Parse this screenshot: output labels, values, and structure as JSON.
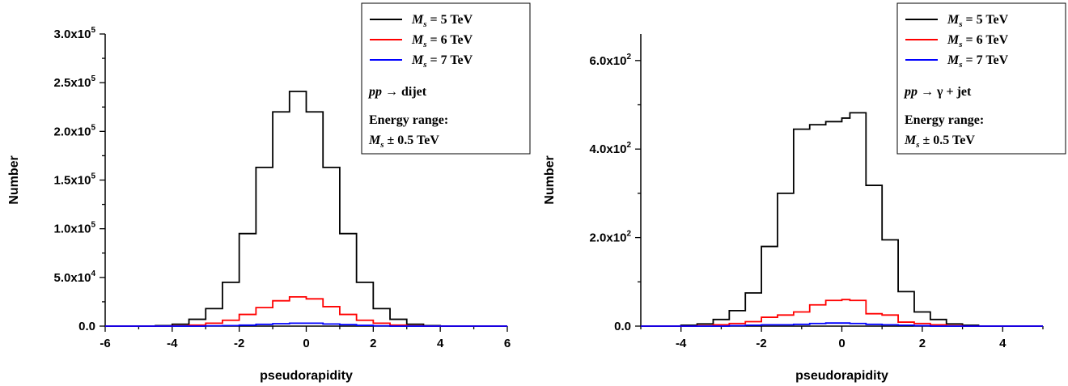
{
  "chart_data": [
    {
      "type": "line",
      "subtype": "step-histogram",
      "xlabel": "pseudorapidity",
      "ylabel": "Number",
      "xlim": [
        -6,
        6
      ],
      "ylim": [
        0,
        300000
      ],
      "xticks": [
        -6,
        -4,
        -2,
        0,
        2,
        4,
        6
      ],
      "xtick_labels": [
        "-6",
        "-4",
        "-2",
        "0",
        "2",
        "4",
        "6"
      ],
      "yticks": [
        0,
        50000,
        100000,
        150000,
        200000,
        250000,
        300000
      ],
      "ytick_mantissa": [
        "0.0",
        "5.0x10",
        "1.0x10",
        "1.5x10",
        "2.0x10",
        "2.5x10",
        "3.0x10"
      ],
      "ytick_exponent": [
        "",
        "4",
        "5",
        "5",
        "5",
        "5",
        "5"
      ],
      "legend_position": "top-right",
      "bin_edges": [
        -5.0,
        -4.5,
        -4.0,
        -3.5,
        -3.0,
        -2.5,
        -2.0,
        -1.5,
        -1.0,
        -0.5,
        0.0,
        0.5,
        1.0,
        1.5,
        2.0,
        2.5,
        3.0,
        3.5,
        4.0,
        4.5,
        5.0
      ],
      "series": [
        {
          "name_math": "M",
          "name_sub": "s",
          "name_rest": " = 5 TeV",
          "color": "#000000",
          "values": [
            0,
            500,
            2000,
            7000,
            18000,
            45000,
            95000,
            163000,
            220000,
            241000,
            220000,
            163000,
            95000,
            45000,
            18000,
            7000,
            2000,
            500,
            0,
            0
          ]
        },
        {
          "name_math": "M",
          "name_sub": "s",
          "name_rest": " = 6 TeV",
          "color": "#ff0000",
          "values": [
            0,
            0,
            300,
            1000,
            3000,
            6000,
            12000,
            19000,
            26000,
            30000,
            28000,
            20000,
            12000,
            6000,
            3000,
            1000,
            300,
            0,
            0,
            0
          ]
        },
        {
          "name_math": "M",
          "name_sub": "s",
          "name_rest": " = 7 TeV",
          "color": "#0000ff",
          "values": [
            0,
            0,
            0,
            0,
            300,
            500,
            1000,
            1800,
            2500,
            3000,
            3000,
            2200,
            1500,
            800,
            300,
            0,
            0,
            0,
            0,
            0
          ]
        }
      ],
      "legend_notes": {
        "process_math": "pp",
        "process_rest": " → dijet",
        "energy_line1": "Energy range:",
        "energy_math": "M",
        "energy_sub": "s",
        "energy_rest": " ± 0.5 TeV"
      }
    },
    {
      "type": "line",
      "subtype": "step-histogram",
      "xlabel": "pseudorapidity",
      "ylabel": "Number",
      "xlim": [
        -5,
        5
      ],
      "ylim": [
        0,
        660
      ],
      "xticks": [
        -4,
        -2,
        0,
        2,
        4
      ],
      "xtick_labels": [
        "-4",
        "-2",
        "0",
        "2",
        "4"
      ],
      "yticks": [
        0,
        200,
        400,
        600
      ],
      "ytick_mantissa": [
        "0.0",
        "2.0x10",
        "4.0x10",
        "6.0x10"
      ],
      "ytick_exponent": [
        "",
        "2",
        "2",
        "2"
      ],
      "legend_position": "top-right",
      "bin_edges": [
        -4.0,
        -3.6,
        -3.2,
        -2.8,
        -2.4,
        -2.0,
        -1.6,
        -1.2,
        -0.8,
        -0.4,
        0.0,
        0.2,
        0.6,
        1.0,
        1.4,
        1.8,
        2.2,
        2.6,
        3.0,
        3.4,
        4.0
      ],
      "series": [
        {
          "name_math": "M",
          "name_sub": "s",
          "name_rest": " = 5 TeV",
          "color": "#000000",
          "values": [
            2,
            5,
            15,
            35,
            75,
            180,
            300,
            445,
            455,
            462,
            470,
            482,
            318,
            195,
            78,
            32,
            15,
            5,
            2,
            0
          ]
        },
        {
          "name_math": "M",
          "name_sub": "s",
          "name_rest": " = 6 TeV",
          "color": "#ff0000",
          "values": [
            0,
            1,
            3,
            6,
            10,
            20,
            25,
            32,
            48,
            58,
            60,
            58,
            28,
            25,
            9,
            6,
            3,
            1,
            0,
            0
          ]
        },
        {
          "name_math": "M",
          "name_sub": "s",
          "name_rest": " = 7 TeV",
          "color": "#0000ff",
          "values": [
            0,
            0,
            0,
            1,
            2,
            3,
            3,
            4,
            6,
            7,
            7,
            6,
            4,
            3,
            2,
            1,
            0,
            0,
            0,
            0
          ]
        }
      ],
      "legend_notes": {
        "process_math": "pp",
        "process_rest": " → γ + jet",
        "energy_line1": "Energy range:",
        "energy_math": "M",
        "energy_sub": "s",
        "energy_rest": " ± 0.5 TeV"
      }
    }
  ]
}
